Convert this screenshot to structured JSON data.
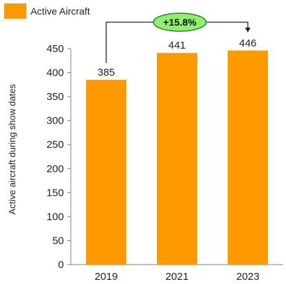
{
  "chart_data": {
    "type": "bar",
    "categories": [
      "2019",
      "2021",
      "2023"
    ],
    "series": [
      {
        "name": "Active Aircraft",
        "values": [
          385,
          441,
          446
        ],
        "color": "#FF9900"
      }
    ],
    "data_labels": [
      "385",
      "441",
      "446"
    ],
    "ylabel": "Active aircraft during show dates",
    "xlabel": "",
    "ylim": [
      0,
      450
    ],
    "yticks": [
      0,
      50,
      100,
      150,
      200,
      250,
      300,
      350,
      400,
      450
    ],
    "grid": false,
    "legend": {
      "position": "top-left",
      "label": "Active Aircraft"
    },
    "annotation": {
      "text": "+15.8%",
      "from": "2019",
      "to": "2023",
      "color": "#90EE70"
    }
  }
}
